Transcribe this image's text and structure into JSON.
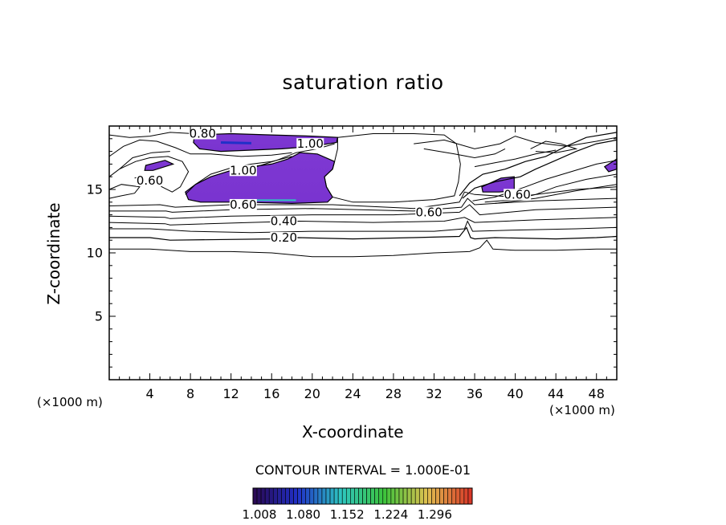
{
  "chart_data": {
    "type": "contour",
    "title": "saturation ratio",
    "xlabel": "X-coordinate",
    "ylabel": "Z-coordinate",
    "x_unit_label_left": "(×1000 m)",
    "x_unit_label_right": "(×1000 m)",
    "xlim": [
      0,
      50
    ],
    "ylim": [
      0,
      20
    ],
    "x_ticks": [
      4,
      8,
      12,
      16,
      20,
      24,
      28,
      32,
      36,
      40,
      44,
      48
    ],
    "y_ticks": [
      5,
      10,
      15
    ],
    "contour_interval_text": "CONTOUR INTERVAL = 1.000E-01",
    "contour_labels": [
      {
        "text": "0.20",
        "x": 17.2,
        "y": 11.2
      },
      {
        "text": "0.40",
        "x": 17.2,
        "y": 12.5
      },
      {
        "text": "0.60",
        "x": 13.2,
        "y": 13.8
      },
      {
        "text": "0.60",
        "x": 31.5,
        "y": 13.2
      },
      {
        "text": "0.60",
        "x": 4.0,
        "y": 15.7
      },
      {
        "text": "0.60",
        "x": 40.2,
        "y": 14.6
      },
      {
        "text": "0.80",
        "x": 9.2,
        "y": 19.4
      },
      {
        "text": "1.00",
        "x": 19.8,
        "y": 18.6
      },
      {
        "text": "1.00",
        "x": 13.2,
        "y": 16.5
      }
    ],
    "supersaturated_regions": [
      {
        "min": 1.008,
        "max": 1.08,
        "outline": [
          [
            8.4,
            19.3
          ],
          [
            12,
            19.4
          ],
          [
            16,
            19.3
          ],
          [
            20,
            19.2
          ],
          [
            22.5,
            19.1
          ],
          [
            22.4,
            18.7
          ],
          [
            20,
            18.4
          ],
          [
            17,
            18.2
          ],
          [
            14,
            18.1
          ],
          [
            11,
            18.0
          ],
          [
            8.9,
            18.2
          ],
          [
            8.3,
            18.7
          ]
        ]
      },
      {
        "min": 1.008,
        "max": 1.08,
        "outline": [
          [
            7.5,
            14.8
          ],
          [
            8.5,
            15.4
          ],
          [
            10,
            16.0
          ],
          [
            12,
            16.5
          ],
          [
            14,
            16.8
          ],
          [
            16,
            17.0
          ],
          [
            17.6,
            17.4
          ],
          [
            18.8,
            17.9
          ],
          [
            20.5,
            17.8
          ],
          [
            22.2,
            17.2
          ],
          [
            22.0,
            16.6
          ],
          [
            21.2,
            16.0
          ],
          [
            21.4,
            15.2
          ],
          [
            22.0,
            14.4
          ],
          [
            21.5,
            14.0
          ],
          [
            18,
            13.9
          ],
          [
            13,
            14.0
          ],
          [
            9,
            14.0
          ],
          [
            7.8,
            14.2
          ]
        ]
      },
      {
        "min": 1.008,
        "max": 1.08,
        "outline": [
          [
            3.6,
            16.9
          ],
          [
            5.5,
            17.3
          ],
          [
            6.3,
            17.0
          ],
          [
            4.3,
            16.5
          ],
          [
            3.5,
            16.5
          ]
        ]
      },
      {
        "min": 1.008,
        "max": 1.08,
        "outline": [
          [
            36.7,
            15.2
          ],
          [
            38.6,
            15.9
          ],
          [
            39.9,
            16.0
          ],
          [
            39.9,
            14.9
          ],
          [
            38.4,
            14.8
          ],
          [
            36.8,
            14.8
          ]
        ]
      },
      {
        "min": 1.008,
        "max": 1.08,
        "outline": [
          [
            48.8,
            16.8
          ],
          [
            50,
            17.4
          ],
          [
            50,
            16.6
          ],
          [
            49.2,
            16.4
          ]
        ]
      }
    ],
    "colorbar": {
      "min": 1.008,
      "max": 1.296,
      "tick_labels": [
        "1.008",
        "1.080",
        "1.152",
        "1.224",
        "1.296"
      ],
      "colors": [
        "#2a0a55",
        "#2030c8",
        "#2ec6c0",
        "#3cc43c",
        "#e0c050",
        "#d83828"
      ]
    }
  }
}
